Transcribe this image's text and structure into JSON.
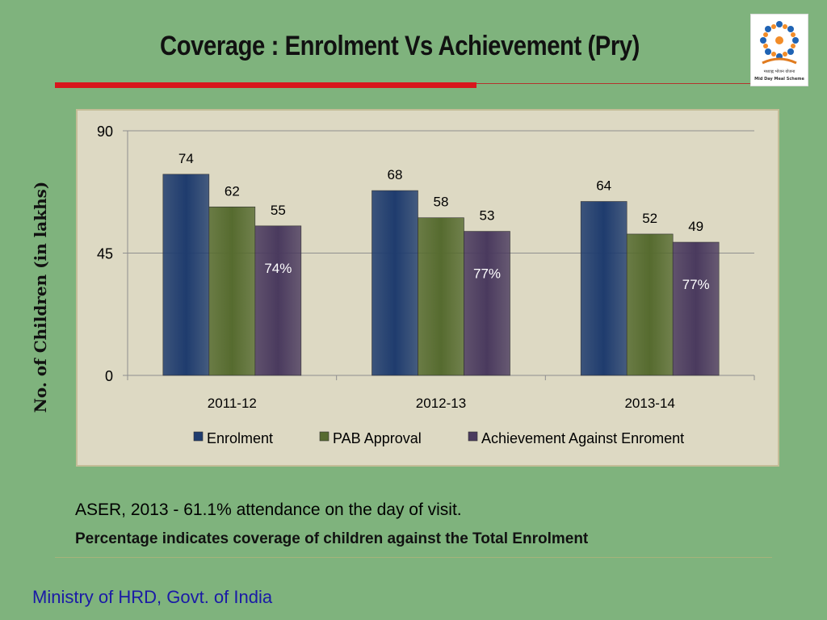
{
  "slide": {
    "title": "Coverage : Enrolment Vs Achievement (Pry)",
    "note_aser": "ASER, 2013 -  61.1% attendance on the day of visit.",
    "note_percentage": "Percentage indicates coverage of children against the Total Enrolment",
    "footer": "Ministry of HRD, Govt. of India",
    "logo": {
      "text": "मध्याह्न भोजन योजना",
      "caption": "Mid Day Meal Scheme",
      "icon": "mid-day-meal-logo"
    }
  },
  "colors": {
    "background": "#7fb37d",
    "chart_bg": "#ddd9c3",
    "title_rule": "#d8161c",
    "footer": "#1a1aa6"
  },
  "chart_data": {
    "type": "bar",
    "ylabel": "No. of Children (in lakhs)",
    "xlabel": "",
    "ylim": [
      0,
      90
    ],
    "yticks": [
      0,
      45,
      90
    ],
    "grid": true,
    "legend": "bottom",
    "categories": [
      "2011-12",
      "2012-13",
      "2013-14"
    ],
    "series": [
      {
        "name": "Enrolment",
        "values": [
          74,
          68,
          64
        ],
        "color": "#1f3c6e"
      },
      {
        "name": "PAB Approval",
        "values": [
          62,
          58,
          52
        ],
        "color": "#566b2f"
      },
      {
        "name": "Achievement Against Enroment",
        "values": [
          55,
          53,
          49
        ],
        "color": "#4a3a5e"
      }
    ],
    "annotations": [
      "74%",
      "77%",
      "77%"
    ]
  }
}
